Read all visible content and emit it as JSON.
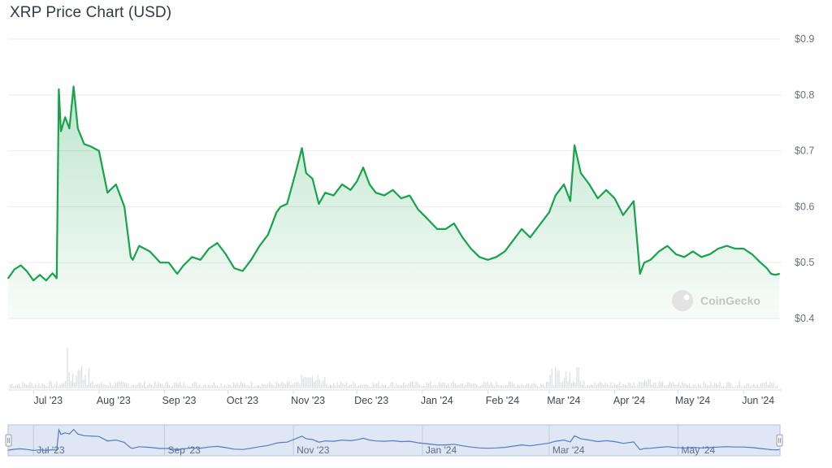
{
  "chart_title": "XRP Price Chart (USD)",
  "watermark": "CoinGecko",
  "colors": {
    "line": "#16a34a",
    "volume": "#d9dde3",
    "navigator_fill": "#dfe6f4",
    "navigator_line": "#5a78c8",
    "grid": "#ececec"
  },
  "chart_data": {
    "type": "area",
    "title": "XRP Price Chart (USD)",
    "xlabel": "",
    "ylabel": "",
    "ylim": [
      0.4,
      0.9
    ],
    "y_ticks": [
      "$0.9",
      "$0.8",
      "$0.7",
      "$0.6",
      "$0.5",
      "$0.4"
    ],
    "y_tick_values": [
      0.9,
      0.8,
      0.7,
      0.6,
      0.5,
      0.4
    ],
    "x_ticks": [
      "Jul '23",
      "Aug '23",
      "Sep '23",
      "Oct '23",
      "Nov '23",
      "Dec '23",
      "Jan '24",
      "Feb '24",
      "Mar '24",
      "Apr '24",
      "May '24",
      "Jun '24"
    ],
    "x_tick_dates": [
      "2023-07-01",
      "2023-08-01",
      "2023-09-01",
      "2023-10-01",
      "2023-11-01",
      "2023-12-01",
      "2024-01-01",
      "2024-02-01",
      "2024-03-01",
      "2024-04-01",
      "2024-05-01",
      "2024-06-01"
    ],
    "xlim": [
      "2023-06-19",
      "2024-06-19"
    ],
    "navigator_ticks": [
      "Jul '23",
      "Sep '23",
      "Nov '23",
      "Jan '24",
      "Mar '24",
      "May '24"
    ],
    "navigator_tick_dates": [
      "2023-07-01",
      "2023-09-01",
      "2023-11-01",
      "2024-01-01",
      "2024-03-01",
      "2024-05-01"
    ],
    "grid": true,
    "legend": "none",
    "series": [
      {
        "x": [
          "2023-06-19",
          "2023-06-22",
          "2023-06-25",
          "2023-06-28",
          "2023-07-01",
          "2023-07-04",
          "2023-07-07",
          "2023-07-10",
          "2023-07-12",
          "2023-07-13",
          "2023-07-14",
          "2023-07-16",
          "2023-07-18",
          "2023-07-20",
          "2023-07-22",
          "2023-07-25",
          "2023-07-28",
          "2023-08-01",
          "2023-08-05",
          "2023-08-09",
          "2023-08-13",
          "2023-08-16",
          "2023-08-17",
          "2023-08-20",
          "2023-08-25",
          "2023-08-30",
          "2023-09-03",
          "2023-09-07",
          "2023-09-10",
          "2023-09-14",
          "2023-09-18",
          "2023-09-22",
          "2023-09-26",
          "2023-09-30",
          "2023-10-04",
          "2023-10-08",
          "2023-10-12",
          "2023-10-16",
          "2023-10-20",
          "2023-10-24",
          "2023-10-26",
          "2023-10-29",
          "2023-11-02",
          "2023-11-05",
          "2023-11-07",
          "2023-11-10",
          "2023-11-13",
          "2023-11-16",
          "2023-11-20",
          "2023-11-24",
          "2023-11-28",
          "2023-12-01",
          "2023-12-04",
          "2023-12-07",
          "2023-12-10",
          "2023-12-14",
          "2023-12-18",
          "2023-12-22",
          "2023-12-26",
          "2023-12-30",
          "2024-01-03",
          "2024-01-08",
          "2024-01-12",
          "2024-01-16",
          "2024-01-20",
          "2024-01-24",
          "2024-01-28",
          "2024-02-01",
          "2024-02-05",
          "2024-02-09",
          "2024-02-13",
          "2024-02-17",
          "2024-02-21",
          "2024-02-25",
          "2024-03-01",
          "2024-03-04",
          "2024-03-08",
          "2024-03-11",
          "2024-03-13",
          "2024-03-16",
          "2024-03-20",
          "2024-03-24",
          "2024-03-28",
          "2024-04-01",
          "2024-04-05",
          "2024-04-10",
          "2024-04-13",
          "2024-04-15",
          "2024-04-18",
          "2024-04-22",
          "2024-04-26",
          "2024-04-30",
          "2024-05-04",
          "2024-05-08",
          "2024-05-12",
          "2024-05-16",
          "2024-05-20",
          "2024-05-24",
          "2024-05-28",
          "2024-06-01",
          "2024-06-05",
          "2024-06-09",
          "2024-06-12",
          "2024-06-14",
          "2024-06-16",
          "2024-06-18"
        ],
        "values": [
          0.472,
          0.488,
          0.495,
          0.484,
          0.468,
          0.478,
          0.468,
          0.481,
          0.472,
          0.81,
          0.735,
          0.76,
          0.74,
          0.815,
          0.74,
          0.712,
          0.708,
          0.7,
          0.625,
          0.64,
          0.6,
          0.51,
          0.505,
          0.53,
          0.52,
          0.5,
          0.5,
          0.48,
          0.495,
          0.51,
          0.505,
          0.525,
          0.535,
          0.515,
          0.49,
          0.485,
          0.505,
          0.53,
          0.55,
          0.59,
          0.6,
          0.605,
          0.66,
          0.705,
          0.66,
          0.65,
          0.605,
          0.625,
          0.62,
          0.64,
          0.63,
          0.645,
          0.67,
          0.64,
          0.625,
          0.62,
          0.63,
          0.615,
          0.62,
          0.595,
          0.58,
          0.56,
          0.56,
          0.57,
          0.545,
          0.525,
          0.51,
          0.505,
          0.51,
          0.52,
          0.54,
          0.56,
          0.545,
          0.565,
          0.59,
          0.62,
          0.64,
          0.61,
          0.71,
          0.66,
          0.64,
          0.615,
          0.63,
          0.615,
          0.585,
          0.61,
          0.48,
          0.5,
          0.505,
          0.52,
          0.53,
          0.515,
          0.51,
          0.52,
          0.51,
          0.515,
          0.525,
          0.53,
          0.525,
          0.525,
          0.515,
          0.5,
          0.49,
          0.48,
          0.478,
          0.48
        ]
      }
    ]
  }
}
